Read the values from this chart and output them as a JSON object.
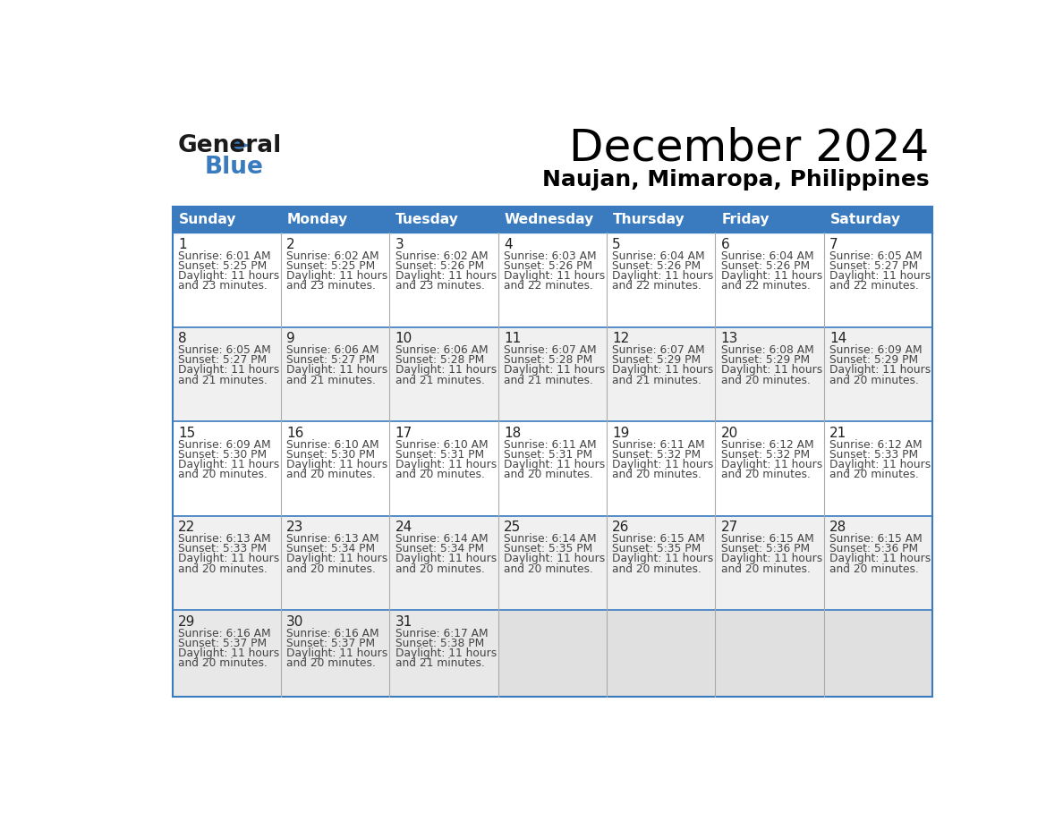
{
  "title": "December 2024",
  "subtitle": "Naujan, Mimaropa, Philippines",
  "header_bg_color": "#3a7bbf",
  "header_text_color": "#ffffff",
  "grid_line_color": "#3a7bbf",
  "text_color": "#444444",
  "day_number_color": "#222222",
  "days_of_week": [
    "Sunday",
    "Monday",
    "Tuesday",
    "Wednesday",
    "Thursday",
    "Friday",
    "Saturday"
  ],
  "row_colors": [
    "#ffffff",
    "#f0f0f0",
    "#ffffff",
    "#f0f0f0",
    "#e8e8e8"
  ],
  "empty_cell_color": "#e0e0e0",
  "calendar": [
    [
      {
        "day": 1,
        "sunrise": "6:01 AM",
        "sunset": "5:25 PM",
        "daylight_min": "23"
      },
      {
        "day": 2,
        "sunrise": "6:02 AM",
        "sunset": "5:25 PM",
        "daylight_min": "23"
      },
      {
        "day": 3,
        "sunrise": "6:02 AM",
        "sunset": "5:26 PM",
        "daylight_min": "23"
      },
      {
        "day": 4,
        "sunrise": "6:03 AM",
        "sunset": "5:26 PM",
        "daylight_min": "22"
      },
      {
        "day": 5,
        "sunrise": "6:04 AM",
        "sunset": "5:26 PM",
        "daylight_min": "22"
      },
      {
        "day": 6,
        "sunrise": "6:04 AM",
        "sunset": "5:26 PM",
        "daylight_min": "22"
      },
      {
        "day": 7,
        "sunrise": "6:05 AM",
        "sunset": "5:27 PM",
        "daylight_min": "22"
      }
    ],
    [
      {
        "day": 8,
        "sunrise": "6:05 AM",
        "sunset": "5:27 PM",
        "daylight_min": "21"
      },
      {
        "day": 9,
        "sunrise": "6:06 AM",
        "sunset": "5:27 PM",
        "daylight_min": "21"
      },
      {
        "day": 10,
        "sunrise": "6:06 AM",
        "sunset": "5:28 PM",
        "daylight_min": "21"
      },
      {
        "day": 11,
        "sunrise": "6:07 AM",
        "sunset": "5:28 PM",
        "daylight_min": "21"
      },
      {
        "day": 12,
        "sunrise": "6:07 AM",
        "sunset": "5:29 PM",
        "daylight_min": "21"
      },
      {
        "day": 13,
        "sunrise": "6:08 AM",
        "sunset": "5:29 PM",
        "daylight_min": "20"
      },
      {
        "day": 14,
        "sunrise": "6:09 AM",
        "sunset": "5:29 PM",
        "daylight_min": "20"
      }
    ],
    [
      {
        "day": 15,
        "sunrise": "6:09 AM",
        "sunset": "5:30 PM",
        "daylight_min": "20"
      },
      {
        "day": 16,
        "sunrise": "6:10 AM",
        "sunset": "5:30 PM",
        "daylight_min": "20"
      },
      {
        "day": 17,
        "sunrise": "6:10 AM",
        "sunset": "5:31 PM",
        "daylight_min": "20"
      },
      {
        "day": 18,
        "sunrise": "6:11 AM",
        "sunset": "5:31 PM",
        "daylight_min": "20"
      },
      {
        "day": 19,
        "sunrise": "6:11 AM",
        "sunset": "5:32 PM",
        "daylight_min": "20"
      },
      {
        "day": 20,
        "sunrise": "6:12 AM",
        "sunset": "5:32 PM",
        "daylight_min": "20"
      },
      {
        "day": 21,
        "sunrise": "6:12 AM",
        "sunset": "5:33 PM",
        "daylight_min": "20"
      }
    ],
    [
      {
        "day": 22,
        "sunrise": "6:13 AM",
        "sunset": "5:33 PM",
        "daylight_min": "20"
      },
      {
        "day": 23,
        "sunrise": "6:13 AM",
        "sunset": "5:34 PM",
        "daylight_min": "20"
      },
      {
        "day": 24,
        "sunrise": "6:14 AM",
        "sunset": "5:34 PM",
        "daylight_min": "20"
      },
      {
        "day": 25,
        "sunrise": "6:14 AM",
        "sunset": "5:35 PM",
        "daylight_min": "20"
      },
      {
        "day": 26,
        "sunrise": "6:15 AM",
        "sunset": "5:35 PM",
        "daylight_min": "20"
      },
      {
        "day": 27,
        "sunrise": "6:15 AM",
        "sunset": "5:36 PM",
        "daylight_min": "20"
      },
      {
        "day": 28,
        "sunrise": "6:15 AM",
        "sunset": "5:36 PM",
        "daylight_min": "20"
      }
    ],
    [
      {
        "day": 29,
        "sunrise": "6:16 AM",
        "sunset": "5:37 PM",
        "daylight_min": "20"
      },
      {
        "day": 30,
        "sunrise": "6:16 AM",
        "sunset": "5:37 PM",
        "daylight_min": "20"
      },
      {
        "day": 31,
        "sunrise": "6:17 AM",
        "sunset": "5:38 PM",
        "daylight_min": "21"
      },
      null,
      null,
      null,
      null
    ]
  ],
  "logo_text_general": "General",
  "logo_text_blue": "Blue",
  "logo_triangle_color": "#3a7bbf",
  "fig_width": 11.88,
  "fig_height": 9.18,
  "dpi": 100
}
